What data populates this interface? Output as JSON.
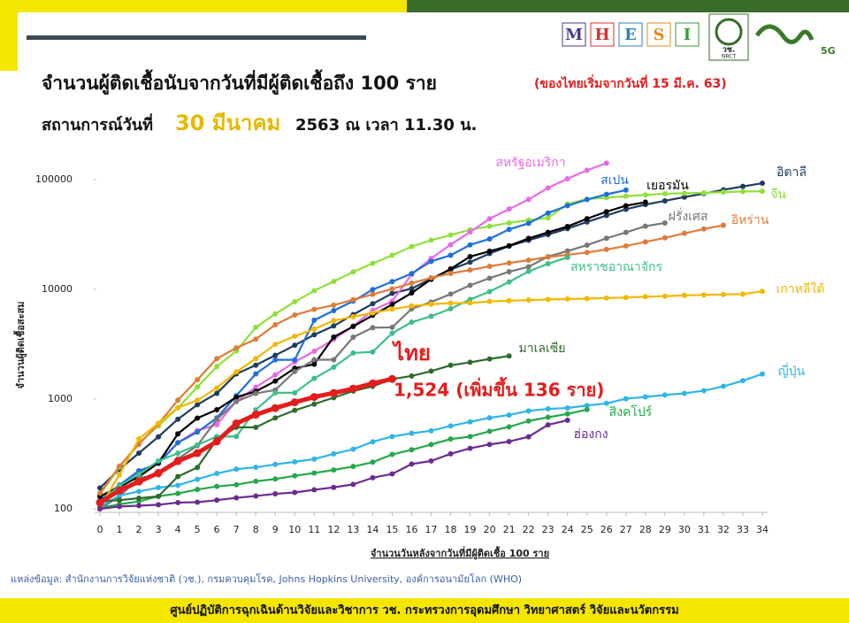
{
  "header": {
    "logo_letters": [
      "M",
      "H",
      "E",
      "S",
      "I"
    ],
    "logo_org": "วช.",
    "logo_org_en": "NRCT",
    "logo_5g": "5G"
  },
  "chart_data": {
    "type": "line",
    "title": "จำนวนผู้ติดเชื้อนับจากวันที่มีผู้ติดเชื้อถึง 100 ราย",
    "title_note": "(ของไทยเริ่มจากวันที่ 15 มี.ค. 63)",
    "subtitle_prefix": "สถานการณ์วันที่",
    "subtitle_date": "30 มีนาคม",
    "subtitle_suffix": "2563 ณ เวลา 11.30 น.",
    "y_label": "จำนวนผู้ติดเชื้อสะสม",
    "x_label": "จำนวนวันหลังจากวันที่มีผู้ติดเชื้อ 100 ราย",
    "log_scale": true,
    "grid": false,
    "xlim": [
      0,
      34
    ],
    "ylim": [
      100,
      150000
    ],
    "xticks": [
      0,
      1,
      2,
      3,
      4,
      5,
      6,
      7,
      8,
      9,
      10,
      11,
      12,
      13,
      14,
      15,
      16,
      17,
      18,
      19,
      20,
      21,
      22,
      23,
      24,
      25,
      26,
      27,
      28,
      29,
      30,
      31,
      32,
      33,
      34
    ],
    "yticks": [
      100,
      1000,
      10000,
      100000
    ],
    "x": [
      0,
      1,
      2,
      3,
      4,
      5,
      6,
      7,
      8,
      9,
      10,
      11,
      12,
      13,
      14,
      15,
      16,
      17,
      18,
      19,
      20,
      21,
      22,
      23,
      24,
      25,
      26,
      27,
      28,
      29,
      30,
      31,
      32,
      33,
      34
    ],
    "series": [
      {
        "name": "อิตาลี",
        "color": "#1f3b5f",
        "values": [
          155,
          229,
          322,
          453,
          655,
          888,
          1128,
          1694,
          2036,
          2502,
          3089,
          3858,
          4636,
          5883,
          7375,
          9172,
          10149,
          12462,
          15113,
          17660,
          21157,
          24747,
          27980,
          31506,
          35713,
          41035,
          47021,
          53578,
          59138,
          63927,
          69176,
          74386,
          80589,
          86498,
          92472
        ]
      },
      {
        "name": "จีน",
        "color": "#8fe03a",
        "values": [
          135,
          240,
          400,
          570,
          830,
          1290,
          1980,
          2740,
          4500,
          5970,
          7700,
          9700,
          11800,
          14400,
          17200,
          20400,
          24500,
          28000,
          31200,
          34800,
          37500,
          40200,
          42700,
          44700,
          59800,
          66300,
          68300,
          70400,
          72400,
          74200,
          75000,
          75500,
          76900,
          77700,
          78100
        ]
      },
      {
        "name": "สหรัฐอเมริกา",
        "color": "#e86ae6",
        "values": [
          118,
          149,
          217,
          262,
          402,
          518,
          583,
          959,
          1281,
          1663,
          2179,
          2727,
          3499,
          4632,
          6421,
          7786,
          13680,
          19101,
          25493,
          33276,
          43847,
          53740,
          65778,
          83836,
          101657,
          121478,
          140886,
          null,
          null,
          null,
          null,
          null,
          null,
          null,
          null
        ]
      },
      {
        "name": "สเปน",
        "color": "#1e6fd9",
        "values": [
          120,
          165,
          222,
          259,
          400,
          500,
          673,
          1073,
          1695,
          2277,
          2277,
          5232,
          6391,
          7798,
          9942,
          11748,
          13910,
          17963,
          20410,
          25374,
          28768,
          35136,
          39885,
          49515,
          57786,
          65719,
          73235,
          80110,
          null,
          null,
          null,
          null,
          null,
          null,
          null
        ]
      },
      {
        "name": "เยอรมัน",
        "color": "#000000",
        "values": [
          130,
          159,
          196,
          262,
          482,
          670,
          799,
          1040,
          1176,
          1457,
          1908,
          2078,
          3675,
          4585,
          5795,
          7272,
          9257,
          12327,
          15320,
          19848,
          22213,
          24873,
          29056,
          32986,
          37323,
          43938,
          50871,
          57695,
          62095,
          null,
          null,
          null,
          null,
          null,
          null
        ]
      },
      {
        "name": "ฝรั่งเศส",
        "color": "#777777",
        "values": [
          100,
          130,
          191,
          204,
          285,
          377,
          653,
          949,
          1126,
          1209,
          1784,
          2281,
          2281,
          3661,
          4469,
          4499,
          6633,
          7652,
          9043,
          10871,
          12612,
          14459,
          16018,
          19856,
          22304,
          25233,
          29155,
          32964,
          37575,
          40174,
          null,
          null,
          null,
          null,
          null
        ]
      },
      {
        "name": "อิหร่าน",
        "color": "#e07b39",
        "values": [
          139,
          245,
          388,
          593,
          978,
          1501,
          2336,
          2922,
          3513,
          4747,
          5823,
          6566,
          7161,
          8042,
          9000,
          10075,
          11364,
          12729,
          13938,
          14991,
          16169,
          17361,
          18407,
          19644,
          20610,
          21638,
          23049,
          24811,
          27017,
          29406,
          32332,
          35408,
          38309,
          null,
          null
        ]
      },
      {
        "name": "สหราชอาณาจักร",
        "color": "#3cbf8a",
        "values": [
          115,
          163,
          206,
          273,
          321,
          382,
          456,
          456,
          798,
          1140,
          1140,
          1543,
          1950,
          2626,
          2689,
          3983,
          5018,
          5683,
          6650,
          8077,
          9529,
          11658,
          14543,
          17089,
          19522,
          null,
          null,
          null,
          null,
          null,
          null,
          null,
          null,
          null,
          null
        ]
      },
      {
        "name": "เกาหลีใต้",
        "color": "#f2b800",
        "values": [
          104,
          204,
          433,
          602,
          833,
          977,
          1261,
          1766,
          2337,
          3150,
          3736,
          4335,
          5186,
          5621,
          6088,
          6593,
          7041,
          7314,
          7478,
          7513,
          7755,
          7869,
          7979,
          8086,
          8162,
          8236,
          8320,
          8413,
          8565,
          8652,
          8799,
          8897,
          8961,
          9037,
          9583
        ]
      },
      {
        "name": "ญี่ปุ่น",
        "color": "#2fb5e6",
        "values": [
          105,
          132,
          144,
          156,
          164,
          186,
          210,
          230,
          239,
          254,
          268,
          284,
          317,
          349,
          408,
          455,
          488,
          514,
          568,
          620,
          675,
          716,
          780,
          814,
          829,
          873,
          914,
          1007,
          1046,
          1089,
          1128,
          1193,
          1307,
          1468,
          1693
        ]
      },
      {
        "name": "สิงคโปร์",
        "color": "#25a84a",
        "values": [
          102,
          110,
          117,
          130,
          138,
          150,
          160,
          166,
          178,
          187,
          200,
          212,
          226,
          243,
          266,
          313,
          345,
          385,
          432,
          455,
          509,
          558,
          631,
          683,
          732,
          802,
          null,
          null,
          null,
          null,
          null,
          null,
          null,
          null,
          null
        ]
      },
      {
        "name": "ฮ่องกง",
        "color": "#6a2c91",
        "values": [
          100,
          105,
          107,
          109,
          114,
          115,
          120,
          126,
          131,
          137,
          141,
          149,
          157,
          167,
          192,
          208,
          256,
          273,
          317,
          356,
          386,
          410,
          453,
          582,
          641,
          null,
          null,
          null,
          null,
          null,
          null,
          null,
          null,
          null,
          null
        ]
      },
      {
        "name": "มาเลเซีย",
        "color": "#2e6b2e",
        "values": [
          117,
          120,
          125,
          130,
          197,
          238,
          428,
          553,
          553,
          673,
          790,
          900,
          1030,
          1183,
          1306,
          1518,
          1624,
          1796,
          2031,
          2161,
          2320,
          2470,
          null,
          null,
          null,
          null,
          null,
          null,
          null,
          null,
          null,
          null,
          null,
          null,
          null
        ]
      },
      {
        "name": "ไทย",
        "color": "#e51c1c",
        "values": [
          114,
          147,
          177,
          212,
          272,
          322,
          411,
          599,
          721,
          827,
          934,
          1045,
          1136,
          1245,
          1388,
          1524,
          null,
          null,
          null,
          null,
          null,
          null,
          null,
          null,
          null,
          null,
          null,
          null,
          null,
          null,
          null,
          null,
          null,
          null,
          null
        ]
      }
    ],
    "annotation": "1,524 (เพิ่มขึ้น 136 ราย)",
    "source": "แหล่งข้อมูล: สำนักงานการวิจัยแห่งชาติ (วช.), กรมควบคุมโรค, Johns Hopkins University, องค์การอนามัยโลก (WHO)",
    "footer": "ศูนย์ปฏิบัติการฉุกเฉินด้านวิจัยและวิชาการ   วช.   กระทรวงการอุดมศึกษา วิทยาศาสตร์ วิจัยและนวัตกรรม"
  }
}
